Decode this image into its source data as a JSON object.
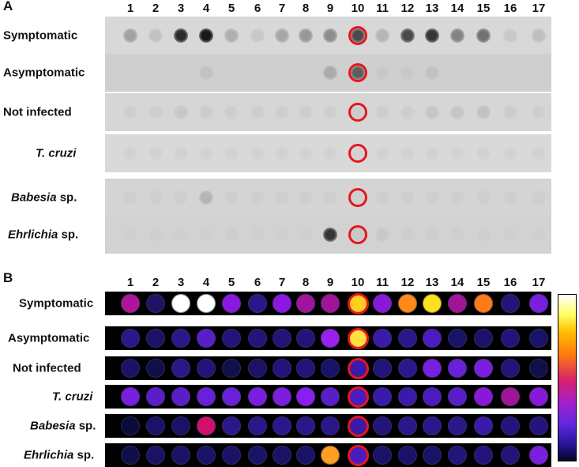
{
  "panels": {
    "a": {
      "letter": "A"
    },
    "b": {
      "letter": "B"
    }
  },
  "columns": [
    "1",
    "2",
    "3",
    "4",
    "5",
    "6",
    "7",
    "8",
    "9",
    "10",
    "11",
    "12",
    "13",
    "14",
    "15",
    "16",
    "17"
  ],
  "highlight_column": "10",
  "rows": [
    {
      "label_bold": "Symptomatic",
      "label_italic": "",
      "label_suffix": ""
    },
    {
      "label_bold": "Asymptomatic",
      "label_italic": "",
      "label_suffix": ""
    },
    {
      "label_bold": "Not infected",
      "label_italic": "",
      "label_suffix": ""
    },
    {
      "label_bold": "",
      "label_italic": "T. cruzi",
      "label_suffix": ""
    },
    {
      "label_bold": "",
      "label_italic": "Babesia",
      "label_suffix": " sp."
    },
    {
      "label_bold": "",
      "label_italic": "Ehrlichia",
      "label_suffix": " sp."
    }
  ],
  "dot_blot_intensity": [
    [
      0.25,
      0.08,
      0.85,
      0.95,
      0.18,
      0.05,
      0.22,
      0.3,
      0.35,
      0.7,
      0.15,
      0.7,
      0.8,
      0.4,
      0.5,
      0.05,
      0.1
    ],
    [
      0.02,
      0.02,
      0.02,
      0.08,
      0.02,
      0.02,
      0.02,
      0.02,
      0.2,
      0.6,
      0.05,
      0.05,
      0.08,
      0.02,
      0.02,
      0.02,
      0.02
    ],
    [
      0.02,
      0.02,
      0.05,
      0.03,
      0.02,
      0.02,
      0.02,
      0.02,
      0.02,
      0.03,
      0.02,
      0.02,
      0.06,
      0.06,
      0.08,
      0.03,
      0.02
    ],
    [
      0.0,
      0.0,
      0.0,
      0.0,
      0.0,
      0.0,
      0.0,
      0.0,
      0.0,
      0.0,
      0.0,
      0.0,
      0.0,
      0.0,
      0.0,
      0.0,
      0.0
    ],
    [
      0.02,
      0.02,
      0.02,
      0.15,
      0.02,
      0.02,
      0.02,
      0.02,
      0.02,
      0.02,
      0.02,
      0.02,
      0.02,
      0.02,
      0.02,
      0.02,
      0.02
    ],
    [
      0.02,
      0.02,
      0.02,
      0.02,
      0.02,
      0.02,
      0.02,
      0.02,
      0.8,
      0.05,
      0.05,
      0.02,
      0.02,
      0.02,
      0.02,
      0.02,
      0.02
    ]
  ],
  "heatmap_colors": [
    [
      "#b0149a",
      "#1e1466",
      "#ffffff",
      "#ffffff",
      "#8a18e0",
      "#2a188a",
      "#8a18e0",
      "#a0149e",
      "#a01498",
      "#ffd020",
      "#8a18d8",
      "#ff8a18",
      "#ffe020",
      "#a01498",
      "#ff7a18",
      "#22147a",
      "#7a1ee0"
    ],
    [
      "#2a188a",
      "#1a1266",
      "#2a188a",
      "#5a1ec8",
      "#221478",
      "#221478",
      "#221478",
      "#221478",
      "#9a20f0",
      "#ffe040",
      "#3a1aa8",
      "#2a188a",
      "#4a1cc0",
      "#1a1266",
      "#1a1266",
      "#22147a",
      "#1a1266"
    ],
    [
      "#1a1266",
      "#120e4a",
      "#2a188a",
      "#22147a",
      "#120e4a",
      "#1a1266",
      "#22147a",
      "#22147a",
      "#1a1266",
      "#3a1aa8",
      "#22147a",
      "#2a188a",
      "#7a1ee0",
      "#6a20d8",
      "#7a1ee0",
      "#22147a",
      "#120e4a"
    ],
    [
      "#7a1ee0",
      "#5a1ec8",
      "#5a1ec8",
      "#6a20d8",
      "#6a20d8",
      "#7a1ee0",
      "#7a1ee0",
      "#8a1ef0",
      "#5a1ec8",
      "#4a1cc0",
      "#3a1aa8",
      "#3a1aa8",
      "#4a1cc0",
      "#5a1ec8",
      "#8a18d8",
      "#a01498",
      "#8a18d8"
    ],
    [
      "#0c0a3a",
      "#1a1266",
      "#1a1266",
      "#d0106a",
      "#2a188a",
      "#2a188a",
      "#2a188a",
      "#2a188a",
      "#2a188a",
      "#3a1aa8",
      "#22147a",
      "#2a188a",
      "#2a188a",
      "#2a188a",
      "#3a1aa8",
      "#22147a",
      "#22147a"
    ],
    [
      "#120e4a",
      "#1a1266",
      "#1a1266",
      "#1a1266",
      "#1a1266",
      "#1a1266",
      "#1a1266",
      "#1a1266",
      "#ffa020",
      "#4a1cc0",
      "#1a1266",
      "#1a1266",
      "#1a1266",
      "#22147a",
      "#22147a",
      "#22147a",
      "#7a1ee0"
    ]
  ],
  "colorbar": {
    "scale": [
      "#ffffff",
      "#ffff60",
      "#ffc000",
      "#ff7a10",
      "#d6206e",
      "#a020d0",
      "#6028e0",
      "#28149a",
      "#050520"
    ]
  }
}
